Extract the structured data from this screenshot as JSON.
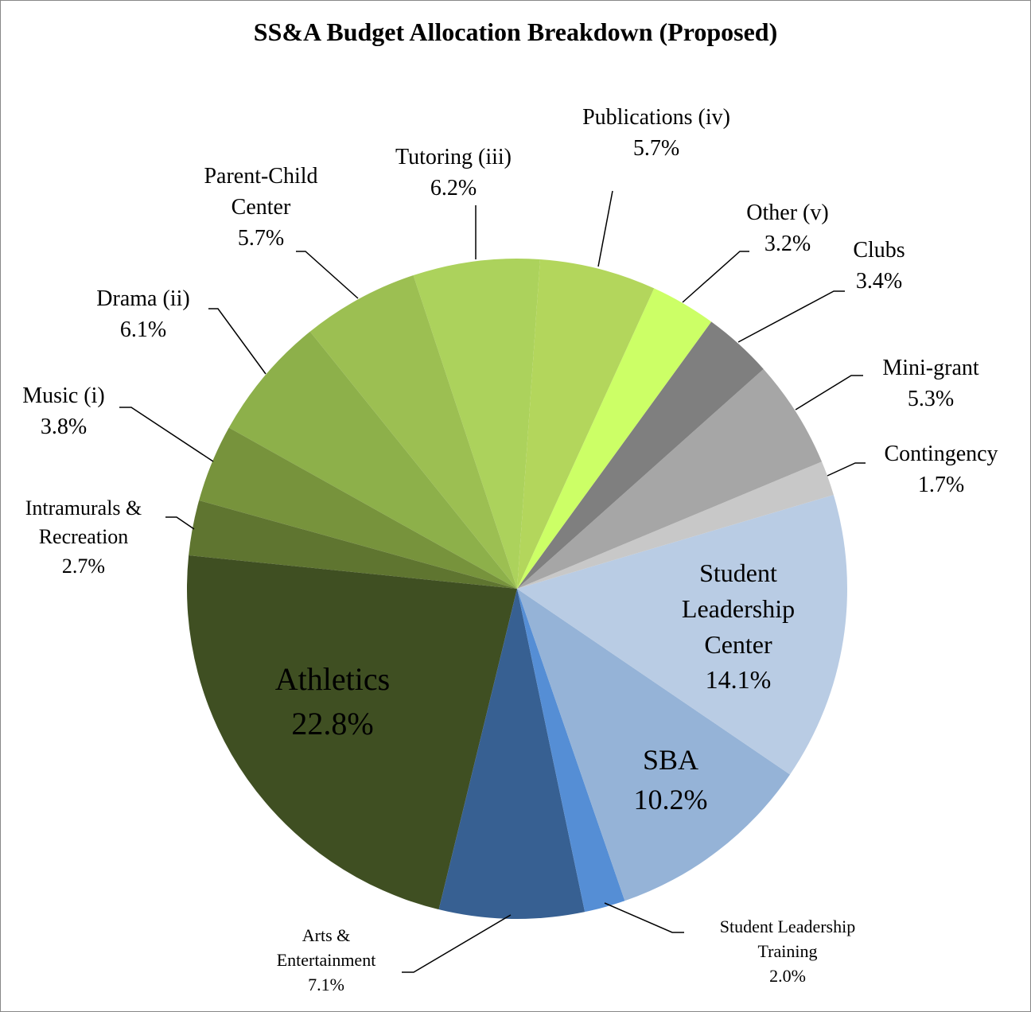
{
  "chart_data": {
    "type": "pie",
    "title": "SS&A Budget Allocation Breakdown (Proposed)",
    "categories": [
      "Publications (iv)",
      "Other (v)",
      "Clubs",
      "Mini-grant",
      "Contingency",
      "Student Leadership Center",
      "SBA",
      "Student Leadership Training",
      "Arts & Entertainment",
      "Athletics",
      "Intramurals & Recreation",
      "Music (i)",
      "Drama (ii)",
      "Parent-Child Center",
      "Tutoring (iii)"
    ],
    "values": [
      5.7,
      3.2,
      3.4,
      5.3,
      1.7,
      14.1,
      10.2,
      2.0,
      7.1,
      22.8,
      2.7,
      3.8,
      6.1,
      5.7,
      6.2
    ],
    "value_labels": [
      "5.7%",
      "3.2%",
      "3.4%",
      "5.3%",
      "1.7%",
      "14.1%",
      "10.2%",
      "2.0%",
      "7.1%",
      "22.8%",
      "2.7%",
      "3.8%",
      "6.1%",
      "5.7%",
      "6.2%"
    ],
    "colors": [
      "#b3d65c",
      "#ccff66",
      "#7f7f7f",
      "#a6a6a6",
      "#c8c8c8",
      "#b9cce4",
      "#95b3d7",
      "#558ed5",
      "#376092",
      "#3f4f22",
      "#5f7530",
      "#77933c",
      "#8db04a",
      "#9cbf52",
      "#acd25c"
    ]
  }
}
